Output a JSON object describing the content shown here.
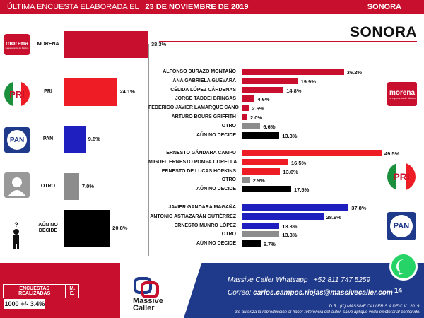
{
  "header": {
    "prefix": "ÚLTIMA ENCUESTA ELABORADA EL",
    "date": "23 DE NOVIEMBRE DE 2019",
    "state": "SONORA"
  },
  "title": "SONORA",
  "logos": {
    "morena": "morena",
    "morena_sub": "La esperanza de México",
    "pri": "PRI",
    "pan": "PAN",
    "otro": "person-icon",
    "no_decide": "thinking-person-icon"
  },
  "colors": {
    "morena": "#c8102e",
    "pri": "#ee1c25",
    "pan": "#1f1fbf",
    "otro": "#8c8c8c",
    "no_decide": "#000000",
    "brand_red": "#c8102e",
    "brand_blue": "#1f3a8a"
  },
  "chart_data": [
    {
      "type": "bar",
      "orientation": "horizontal",
      "categories": [
        "MORENA",
        "PRI",
        "PAN",
        "OTRO",
        "AÚN NO DECIDE"
      ],
      "values": [
        38.3,
        24.1,
        9.8,
        7.0,
        20.8
      ],
      "value_labels": [
        "38.3%",
        "24.1%",
        "9.8%",
        "7.0%",
        "20.8%"
      ]
    },
    {
      "type": "bar",
      "orientation": "horizontal",
      "party": "MORENA",
      "categories": [
        "ALFONSO DURAZO MONTAÑO",
        "ANA GABRIELA GUEVARA",
        "CÉLIDA LÓPEZ CÁRDENAS",
        "JORGE TADDEI BRINGAS",
        "FEDERICO JAVIER LAMARQUE CANO",
        "ARTURO BOURS GRIFFITH",
        "OTRO",
        "AÚN NO DECIDE"
      ],
      "values": [
        36.2,
        19.9,
        14.8,
        4.6,
        2.6,
        2.0,
        6.6,
        13.3
      ],
      "value_labels": [
        "36.2%",
        "19.9%",
        "14.8%",
        "4.6%",
        "2.6%",
        "2.0%",
        "6.6%",
        "13.3%"
      ]
    },
    {
      "type": "bar",
      "orientation": "horizontal",
      "party": "PRI",
      "categories": [
        "ERNESTO GÁNDARA CAMPU",
        "MIGUEL ERNESTO POMPA CORELLA",
        "ERNESTO DE LUCAS HOPKINS",
        "OTRO",
        "AÚN NO DECIDE"
      ],
      "values": [
        49.5,
        16.5,
        13.6,
        2.9,
        17.5
      ],
      "value_labels": [
        "49.5%",
        "16.5%",
        "13.6%",
        "2.9%",
        "17.5%"
      ]
    },
    {
      "type": "bar",
      "orientation": "horizontal",
      "party": "PAN",
      "categories": [
        "JAVIER GANDARA MAGAÑA",
        "ANTONIO ASTIAZARÁN GUTIÉRREZ",
        "ERNESTO MUNRO LÓPEZ",
        "OTRO",
        "AÚN NO DECIDE"
      ],
      "values": [
        37.8,
        28.9,
        13.3,
        13.3,
        6.7
      ],
      "value_labels": [
        "37.8%",
        "28.9%",
        "13.3%",
        "13.3%",
        "6.7%"
      ]
    }
  ],
  "footer": {
    "stats_h1": "ENCUESTAS REALIZADAS",
    "stats_h2": "M. E.",
    "stats_v1": "1000",
    "stats_v2": "+/- 3.4%",
    "brand": "Massive",
    "brand2": "Caller",
    "whatsapp_line_label": "Massive Caller Whatsapp",
    "whatsapp_number": "+52 811 747 5259",
    "email_label": "Correo:",
    "email": "carlos.campos.riojas@massivecaller.com",
    "page": "14",
    "legal1": "D.R., (C) MASSIVE CALLER S.A DE C.V., 2019.",
    "legal2": "Se autoriza la reproducción al hacer referencia del autor, salvo aplique veda electoral al contenido."
  }
}
